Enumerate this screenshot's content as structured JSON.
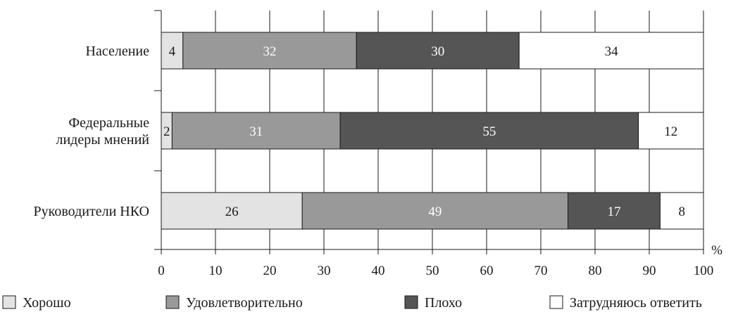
{
  "chart_data": {
    "type": "bar",
    "orientation": "horizontal",
    "stacked": true,
    "categories": [
      "Население",
      "Федеральные\nлидеры мнений",
      "Руководители НКО"
    ],
    "series": [
      {
        "name": "Хорошо",
        "values": [
          4,
          2,
          26
        ],
        "color": "#e3e3e3",
        "label_color": "#1a1a1a"
      },
      {
        "name": "Удовлетворительно",
        "values": [
          32,
          31,
          49
        ],
        "color": "#999999",
        "label_color": "#ffffff"
      },
      {
        "name": "Плохо",
        "values": [
          30,
          55,
          17
        ],
        "color": "#555555",
        "label_color": "#ffffff"
      },
      {
        "name": "Затрудняюсь ответить",
        "values": [
          34,
          12,
          8
        ],
        "color": "#ffffff",
        "label_color": "#1a1a1a"
      }
    ],
    "xlabel": "%",
    "xlim": [
      0,
      100
    ],
    "xticks": [
      0,
      10,
      20,
      30,
      40,
      50,
      60,
      70,
      80,
      90,
      100
    ],
    "grid": true,
    "legend_position": "bottom"
  }
}
